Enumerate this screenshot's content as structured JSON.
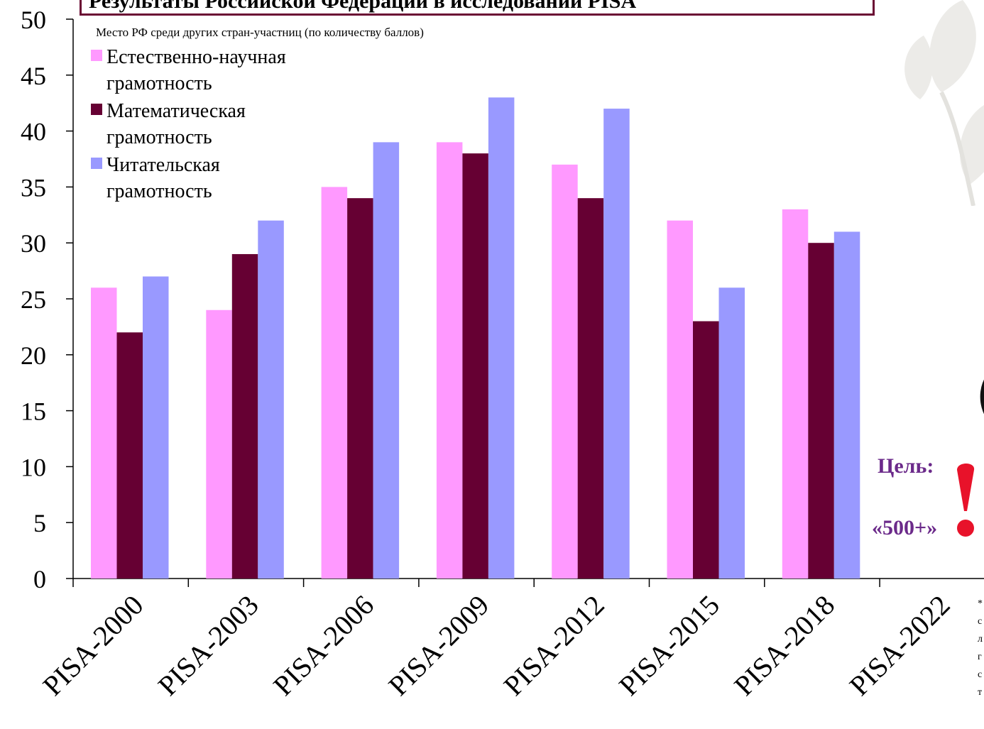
{
  "header": {
    "title": "Результаты Российской Федерации в исследовании PISA",
    "subtitle": "Место РФ среди других стран-участниц (по количеству баллов)"
  },
  "chart_data": {
    "type": "bar",
    "title": "Результаты Российской Федерации в исследовании PISA",
    "subtitle": "Место РФ среди других стран-участниц (по количеству баллов)",
    "categories": [
      "PISA-2000",
      "PISA-2003",
      "PISA-2006",
      "PISA-2009",
      "PISA-2012",
      "PISA-2015",
      "PISA-2018",
      "PISA-2022"
    ],
    "series": [
      {
        "name": "Естественно-научная грамотность",
        "color": "#ff99ff",
        "values": [
          26,
          24,
          35,
          39,
          37,
          32,
          33,
          null
        ]
      },
      {
        "name": "Математическая грамотность",
        "color": "#660033",
        "values": [
          22,
          29,
          34,
          38,
          34,
          23,
          30,
          null
        ]
      },
      {
        "name": "Читательская грамотность",
        "color": "#9999ff",
        "values": [
          27,
          32,
          39,
          43,
          42,
          26,
          31,
          null
        ]
      }
    ],
    "ylim": [
      0,
      50
    ],
    "yticks": [
      0,
      5,
      10,
      15,
      20,
      25,
      30,
      35,
      40,
      45,
      50
    ],
    "grid": false,
    "legend_position": "top-left",
    "x_tick_rotation": "diagonal"
  },
  "annotations": {
    "goal_label": "Цель:",
    "goal_value": "«500+»",
    "exclamation_color": "#e8122a",
    "text_color": "#6b2a8a"
  },
  "footnote": {
    "lines": [
      "*",
      "с",
      "л",
      "г",
      "с",
      "т"
    ]
  },
  "colors": {
    "frame": "#6a0a33",
    "axis": "#000000"
  }
}
